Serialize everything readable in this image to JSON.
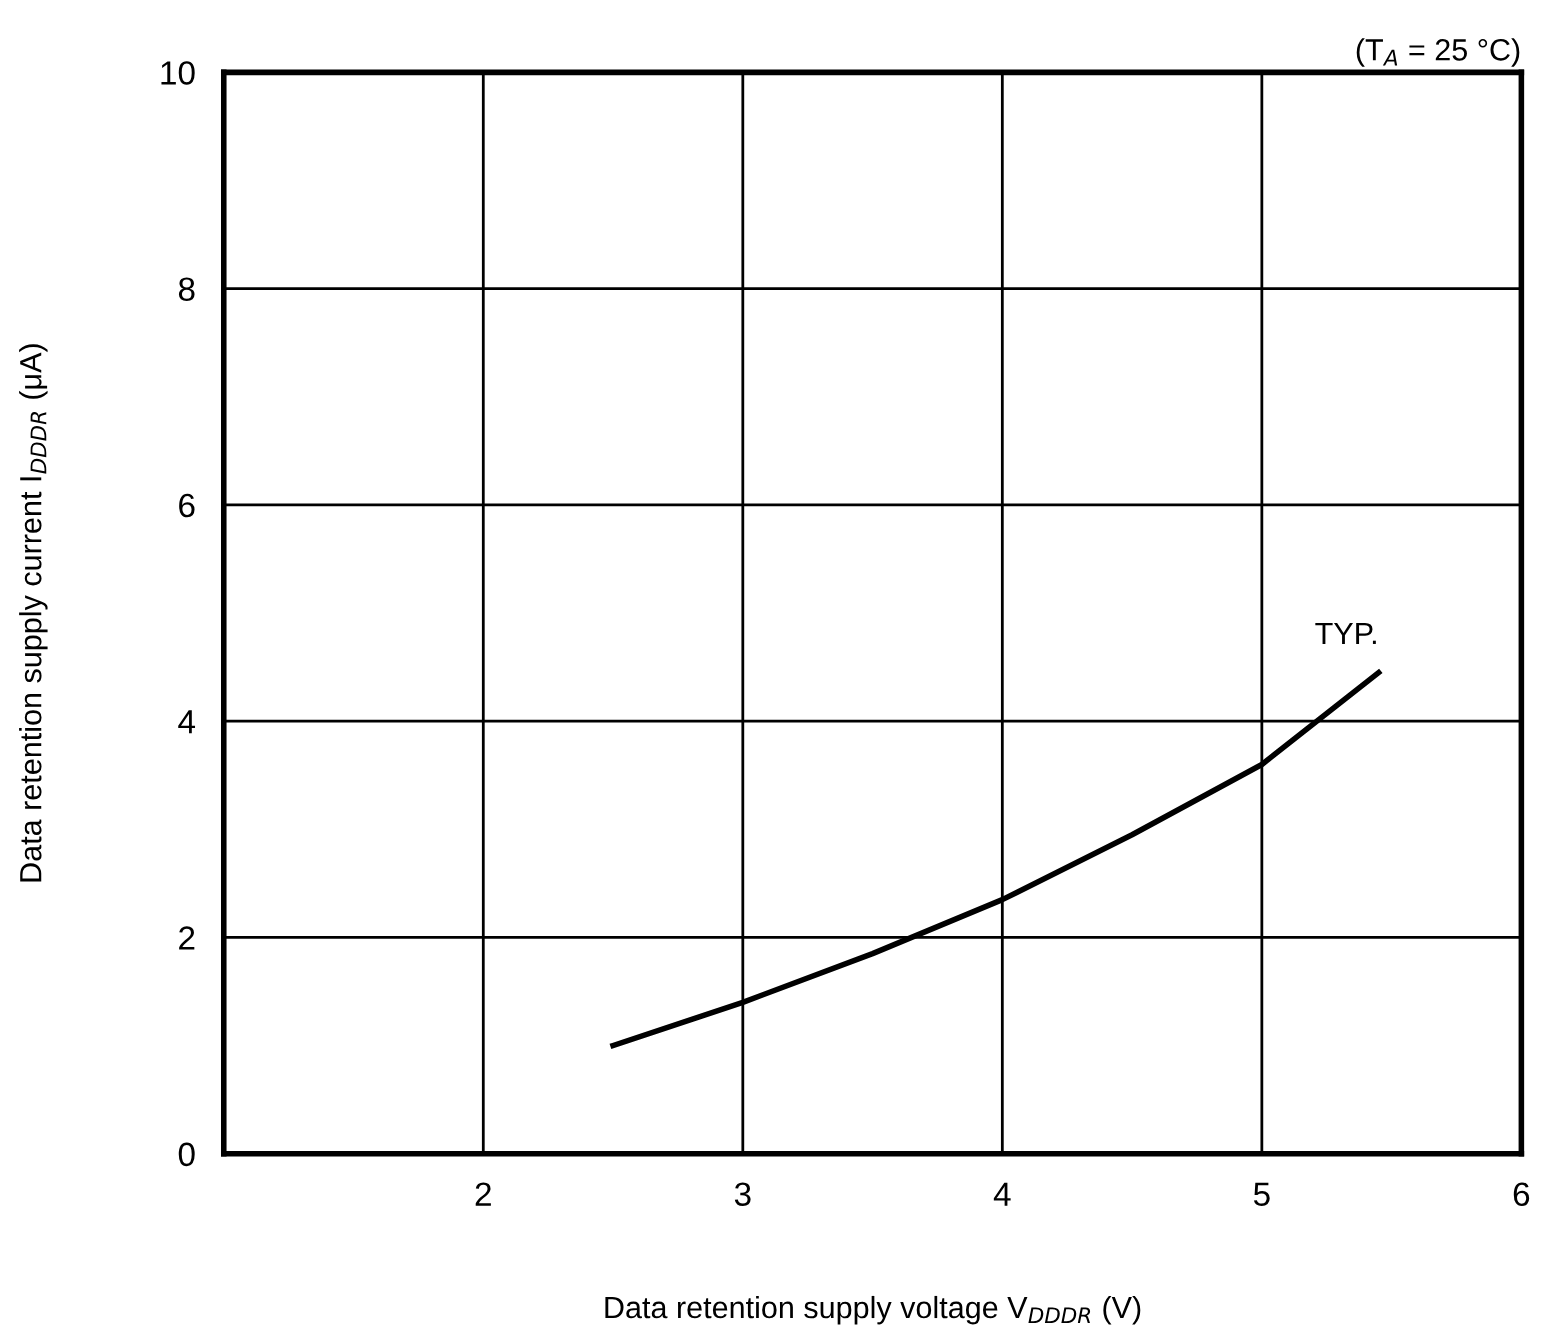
{
  "chart_data": {
    "type": "line",
    "xlabel": "Data retention supply voltage V$_{DDDR}$ (V)",
    "ylabel": "Data retention supply current I$_{DDDR}$ (μA)",
    "annotations": [
      "(T$_{A}$ = 25 °C)",
      {
        "text": "TYP.",
        "x": 5.45,
        "y": 4.45
      }
    ],
    "series": [
      {
        "color": "#000000",
        "x": [
          2.5,
          3.0,
          3.5,
          4.0,
          4.5,
          5.0,
          5.45
        ],
        "values": [
          1.0,
          1.4,
          1.85,
          2.35,
          2.95,
          3.6,
          4.45
        ]
      }
    ],
    "xlim": [
      1,
      6
    ],
    "xticks": [
      2,
      3,
      4,
      5,
      6
    ],
    "ylim": [
      0,
      10
    ],
    "yticks": [
      0,
      2,
      4,
      6,
      8,
      10
    ],
    "grid": true,
    "legend": false,
    "marker": "none",
    "line_style": "solid"
  }
}
